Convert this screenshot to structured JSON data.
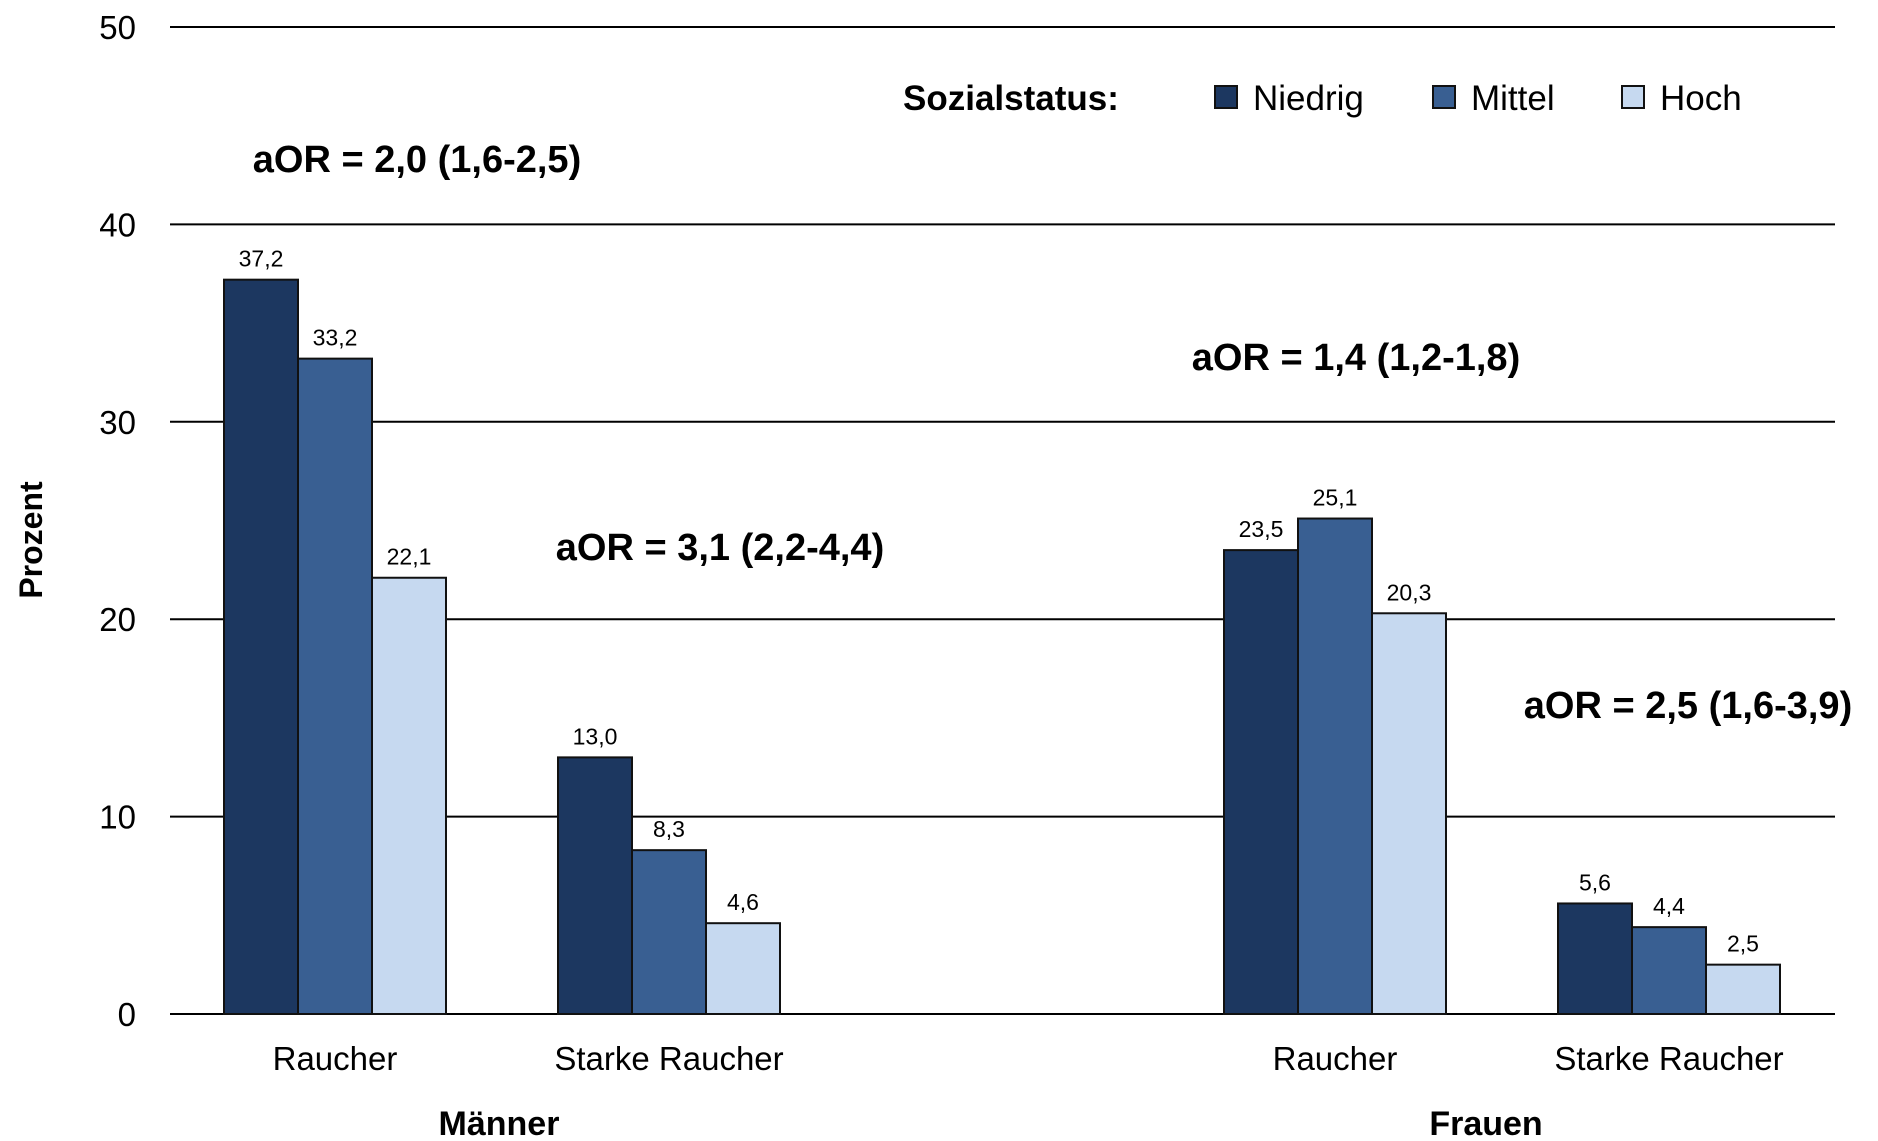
{
  "chart_data": {
    "type": "bar",
    "ylabel": "Prozent",
    "ylim": [
      0,
      50
    ],
    "yticks": [
      "0",
      "10",
      "20",
      "30",
      "40",
      "50"
    ],
    "grid": true,
    "legend": {
      "title": "Sozialstatus:",
      "placement": "top-right",
      "entries": [
        "Niedrig",
        "Mittel",
        "Hoch"
      ]
    },
    "colors": {
      "Niedrig": "#1c3760",
      "Mittel": "#395f92",
      "Hoch": "#c6d9f0"
    },
    "groups": [
      {
        "name": "Männer",
        "categories": [
          {
            "label": "Raucher",
            "values": [
              37.2,
              33.2,
              22.1
            ],
            "value_labels": [
              "37,2",
              "33,2",
              "22,1"
            ],
            "annotation": "aOR = 2,0 (1,6-2,5)"
          },
          {
            "label": "Starke Raucher",
            "values": [
              13.0,
              8.3,
              4.6
            ],
            "value_labels": [
              "13,0",
              "8,3",
              "4,6"
            ],
            "annotation": "aOR = 3,1 (2,2-4,4)"
          }
        ]
      },
      {
        "name": "Frauen",
        "categories": [
          {
            "label": "Raucher",
            "values": [
              23.5,
              25.1,
              20.3
            ],
            "value_labels": [
              "23,5",
              "25,1",
              "20,3"
            ],
            "annotation": "aOR = 1,4 (1,2-1,8)"
          },
          {
            "label": "Starke Raucher",
            "values": [
              5.6,
              4.4,
              2.5
            ],
            "value_labels": [
              "5,6",
              "4,4",
              "2,5"
            ],
            "annotation": "aOR = 2,5 (1,6-3,9)"
          }
        ]
      }
    ]
  }
}
